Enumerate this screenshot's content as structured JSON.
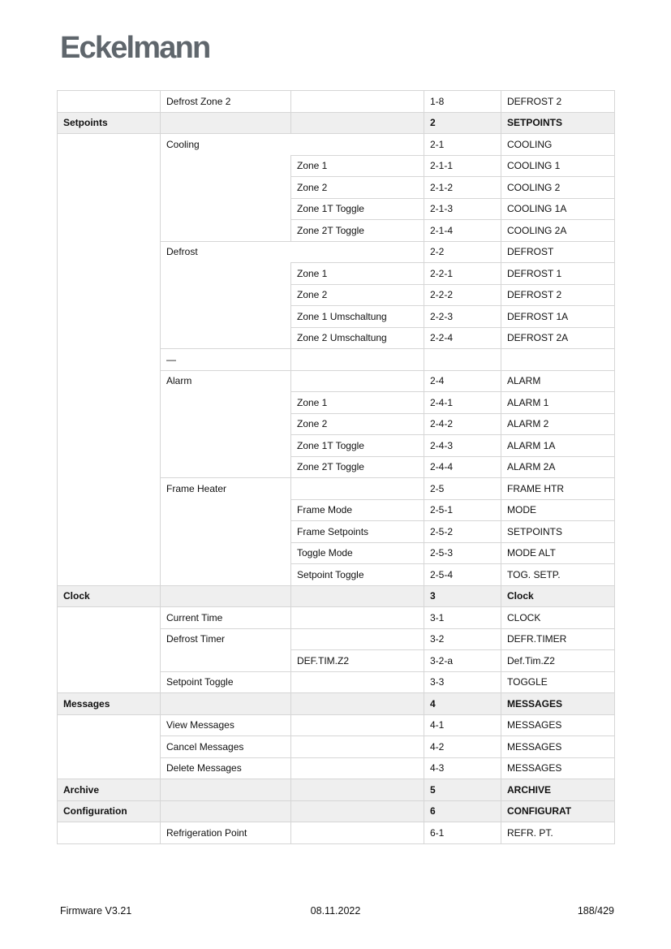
{
  "page": {
    "logo_text": "Eckelmann"
  },
  "colors": {
    "logo_gray": "#5f666c",
    "section_row_shade": "#efefef",
    "table_border": "#d6d6d6",
    "text": "#111111"
  },
  "footer": {
    "firmware": "Firmware V3.21",
    "date": "08.11.2022",
    "page_number": "188/429"
  },
  "table": {
    "columns": [
      127,
      161,
      164,
      95,
      140
    ],
    "rows": [
      {
        "shaded": false,
        "cells": [
          {
            "c": 1,
            "t": ""
          },
          {
            "c": 2,
            "t": "Defrost Zone 2"
          },
          {
            "c": 3,
            "t": ""
          },
          {
            "c": 4,
            "t": "1-8"
          },
          {
            "c": 5,
            "t": "DEFROST 2"
          }
        ]
      },
      {
        "shaded": true,
        "cells": [
          {
            "c": 1,
            "t": "Setpoints"
          },
          {
            "c": 2,
            "t": ""
          },
          {
            "c": 3,
            "t": ""
          },
          {
            "c": 4,
            "t": "2"
          },
          {
            "c": 5,
            "t": "SETPOINTS"
          }
        ]
      },
      {
        "shaded": false,
        "cells": [
          {
            "c": 1,
            "t": "",
            "rs": 21
          },
          {
            "c": 2,
            "t": "Cooling",
            "rs": 5,
            "nr": true
          },
          {
            "c": 3,
            "t": "",
            "nl": true
          },
          {
            "c": 4,
            "t": "2-1"
          },
          {
            "c": 5,
            "t": "COOLING"
          }
        ]
      },
      {
        "shaded": false,
        "cells": [
          {
            "c": 3,
            "t": "Zone 1"
          },
          {
            "c": 4,
            "t": "2-1-1"
          },
          {
            "c": 5,
            "t": "COOLING 1"
          }
        ]
      },
      {
        "shaded": false,
        "cells": [
          {
            "c": 3,
            "t": "Zone 2"
          },
          {
            "c": 4,
            "t": "2-1-2"
          },
          {
            "c": 5,
            "t": "COOLING 2"
          }
        ]
      },
      {
        "shaded": false,
        "cells": [
          {
            "c": 3,
            "t": "Zone 1T Toggle"
          },
          {
            "c": 4,
            "t": "2-1-3"
          },
          {
            "c": 5,
            "t": "COOLING 1A"
          }
        ]
      },
      {
        "shaded": false,
        "cells": [
          {
            "c": 3,
            "t": "Zone 2T Toggle"
          },
          {
            "c": 4,
            "t": "2-1-4"
          },
          {
            "c": 5,
            "t": "COOLING 2A"
          }
        ]
      },
      {
        "shaded": false,
        "cells": [
          {
            "c": 2,
            "t": "Defrost",
            "rs": 5,
            "nr": true
          },
          {
            "c": 3,
            "t": "",
            "nl": true
          },
          {
            "c": 4,
            "t": "2-2"
          },
          {
            "c": 5,
            "t": "DEFROST"
          }
        ]
      },
      {
        "shaded": false,
        "cells": [
          {
            "c": 3,
            "t": "Zone 1"
          },
          {
            "c": 4,
            "t": "2-2-1"
          },
          {
            "c": 5,
            "t": "DEFROST 1"
          }
        ]
      },
      {
        "shaded": false,
        "cells": [
          {
            "c": 3,
            "t": "Zone 2"
          },
          {
            "c": 4,
            "t": "2-2-2"
          },
          {
            "c": 5,
            "t": "DEFROST 2"
          }
        ]
      },
      {
        "shaded": false,
        "cells": [
          {
            "c": 3,
            "t": "Zone 1 Umschaltung"
          },
          {
            "c": 4,
            "t": "2-2-3"
          },
          {
            "c": 5,
            "t": "DEFROST 1A"
          }
        ]
      },
      {
        "shaded": false,
        "cells": [
          {
            "c": 3,
            "t": "Zone 2 Umschaltung"
          },
          {
            "c": 4,
            "t": "2-2-4"
          },
          {
            "c": 5,
            "t": "DEFROST 2A"
          }
        ]
      },
      {
        "shaded": false,
        "cells": [
          {
            "c": 2,
            "t": "—"
          },
          {
            "c": 3,
            "t": ""
          },
          {
            "c": 4,
            "t": ""
          },
          {
            "c": 5,
            "t": ""
          }
        ]
      },
      {
        "shaded": false,
        "cells": [
          {
            "c": 2,
            "t": "Alarm",
            "rs": 5
          },
          {
            "c": 3,
            "t": ""
          },
          {
            "c": 4,
            "t": "2-4"
          },
          {
            "c": 5,
            "t": "ALARM"
          }
        ]
      },
      {
        "shaded": false,
        "cells": [
          {
            "c": 3,
            "t": "Zone 1"
          },
          {
            "c": 4,
            "t": "2-4-1"
          },
          {
            "c": 5,
            "t": "ALARM 1"
          }
        ]
      },
      {
        "shaded": false,
        "cells": [
          {
            "c": 3,
            "t": "Zone 2"
          },
          {
            "c": 4,
            "t": "2-4-2"
          },
          {
            "c": 5,
            "t": "ALARM 2"
          }
        ]
      },
      {
        "shaded": false,
        "cells": [
          {
            "c": 3,
            "t": "Zone 1T Toggle"
          },
          {
            "c": 4,
            "t": "2-4-3"
          },
          {
            "c": 5,
            "t": "ALARM 1A"
          }
        ]
      },
      {
        "shaded": false,
        "cells": [
          {
            "c": 3,
            "t": "Zone 2T Toggle"
          },
          {
            "c": 4,
            "t": "2-4-4"
          },
          {
            "c": 5,
            "t": "ALARM 2A"
          }
        ]
      },
      {
        "shaded": false,
        "cells": [
          {
            "c": 2,
            "t": "Frame Heater",
            "rs": 5
          },
          {
            "c": 3,
            "t": ""
          },
          {
            "c": 4,
            "t": "2-5"
          },
          {
            "c": 5,
            "t": "FRAME HTR"
          }
        ]
      },
      {
        "shaded": false,
        "cells": [
          {
            "c": 3,
            "t": "Frame Mode"
          },
          {
            "c": 4,
            "t": "2-5-1"
          },
          {
            "c": 5,
            "t": "MODE"
          }
        ]
      },
      {
        "shaded": false,
        "cells": [
          {
            "c": 3,
            "t": "Frame Setpoints"
          },
          {
            "c": 4,
            "t": "2-5-2"
          },
          {
            "c": 5,
            "t": "SETPOINTS"
          }
        ]
      },
      {
        "shaded": false,
        "cells": [
          {
            "c": 3,
            "t": "Toggle Mode"
          },
          {
            "c": 4,
            "t": "2-5-3"
          },
          {
            "c": 5,
            "t": "MODE ALT"
          }
        ]
      },
      {
        "shaded": false,
        "cells": [
          {
            "c": 3,
            "t": "Setpoint Toggle"
          },
          {
            "c": 4,
            "t": "2-5-4"
          },
          {
            "c": 5,
            "t": "TOG. SETP."
          }
        ]
      },
      {
        "shaded": true,
        "cells": [
          {
            "c": 1,
            "t": "Clock"
          },
          {
            "c": 2,
            "t": ""
          },
          {
            "c": 3,
            "t": ""
          },
          {
            "c": 4,
            "t": "3"
          },
          {
            "c": 5,
            "t": "Clock"
          }
        ]
      },
      {
        "shaded": false,
        "cells": [
          {
            "c": 1,
            "t": "",
            "rs": 4
          },
          {
            "c": 2,
            "t": "Current Time"
          },
          {
            "c": 3,
            "t": ""
          },
          {
            "c": 4,
            "t": "3-1"
          },
          {
            "c": 5,
            "t": "CLOCK"
          }
        ]
      },
      {
        "shaded": false,
        "cells": [
          {
            "c": 2,
            "t": "Defrost Timer",
            "rs": 2
          },
          {
            "c": 3,
            "t": ""
          },
          {
            "c": 4,
            "t": "3-2"
          },
          {
            "c": 5,
            "t": "DEFR.TIMER"
          }
        ]
      },
      {
        "shaded": false,
        "cells": [
          {
            "c": 3,
            "t": "DEF.TIM.Z2"
          },
          {
            "c": 4,
            "t": "3-2-a"
          },
          {
            "c": 5,
            "t": "Def.Tim.Z2"
          }
        ]
      },
      {
        "shaded": false,
        "cells": [
          {
            "c": 2,
            "t": "Setpoint Toggle"
          },
          {
            "c": 3,
            "t": ""
          },
          {
            "c": 4,
            "t": "3-3"
          },
          {
            "c": 5,
            "t": "TOGGLE"
          }
        ]
      },
      {
        "shaded": true,
        "cells": [
          {
            "c": 1,
            "t": "Messages"
          },
          {
            "c": 2,
            "t": ""
          },
          {
            "c": 3,
            "t": ""
          },
          {
            "c": 4,
            "t": "4"
          },
          {
            "c": 5,
            "t": "MESSAGES"
          }
        ]
      },
      {
        "shaded": false,
        "cells": [
          {
            "c": 1,
            "t": "",
            "rs": 3
          },
          {
            "c": 2,
            "t": "View Messages"
          },
          {
            "c": 3,
            "t": ""
          },
          {
            "c": 4,
            "t": "4-1"
          },
          {
            "c": 5,
            "t": "MESSAGES"
          }
        ]
      },
      {
        "shaded": false,
        "cells": [
          {
            "c": 2,
            "t": "Cancel Messages"
          },
          {
            "c": 3,
            "t": ""
          },
          {
            "c": 4,
            "t": "4-2"
          },
          {
            "c": 5,
            "t": "MESSAGES"
          }
        ]
      },
      {
        "shaded": false,
        "cells": [
          {
            "c": 2,
            "t": "Delete Messages"
          },
          {
            "c": 3,
            "t": ""
          },
          {
            "c": 4,
            "t": "4-3"
          },
          {
            "c": 5,
            "t": "MESSAGES"
          }
        ]
      },
      {
        "shaded": true,
        "cells": [
          {
            "c": 1,
            "t": "Archive"
          },
          {
            "c": 2,
            "t": ""
          },
          {
            "c": 3,
            "t": ""
          },
          {
            "c": 4,
            "t": "5"
          },
          {
            "c": 5,
            "t": "ARCHIVE"
          }
        ]
      },
      {
        "shaded": true,
        "cells": [
          {
            "c": 1,
            "t": "Configuration"
          },
          {
            "c": 2,
            "t": ""
          },
          {
            "c": 3,
            "t": ""
          },
          {
            "c": 4,
            "t": "6"
          },
          {
            "c": 5,
            "t": "CONFIGURAT"
          }
        ]
      },
      {
        "shaded": false,
        "cells": [
          {
            "c": 1,
            "t": ""
          },
          {
            "c": 2,
            "t": "Refrigeration Point"
          },
          {
            "c": 3,
            "t": ""
          },
          {
            "c": 4,
            "t": "6-1"
          },
          {
            "c": 5,
            "t": "REFR. PT."
          }
        ]
      }
    ]
  }
}
